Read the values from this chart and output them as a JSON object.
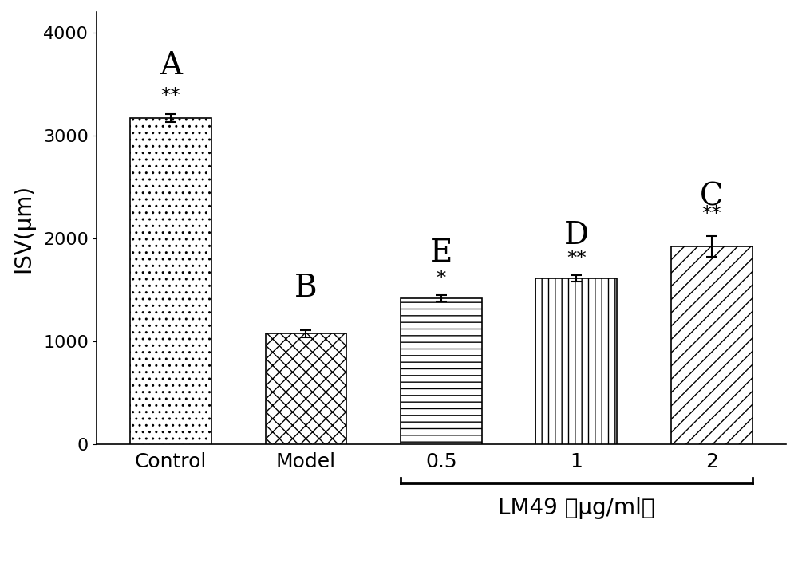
{
  "categories": [
    "Control",
    "Model",
    "0.5",
    "1",
    "2"
  ],
  "values": [
    3170,
    1075,
    1420,
    1610,
    1920
  ],
  "errors": [
    40,
    35,
    30,
    30,
    100
  ],
  "letter_labels": [
    "A",
    "B",
    "E",
    "D",
    "C"
  ],
  "sig_labels": [
    "**",
    "",
    "*",
    "**",
    "**"
  ],
  "ylabel": "ISV(μm)",
  "xlabel_main": "LM49 （μg/ml）",
  "ylim": [
    0,
    4200
  ],
  "yticks": [
    0,
    1000,
    2000,
    3000,
    4000
  ],
  "background_color": "#ffffff",
  "bar_edge_color": "#000000",
  "letter_fontsize": 28,
  "sig_fontsize": 18,
  "ylabel_fontsize": 20,
  "tick_fontsize": 16,
  "xlabel_fontsize": 20,
  "hatch_patterns": [
    "..",
    "xx",
    "--",
    "||",
    "//"
  ]
}
